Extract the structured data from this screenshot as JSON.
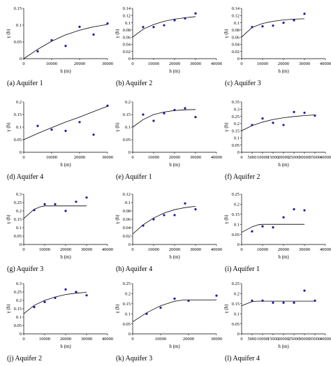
{
  "figure": {
    "panels": [
      {
        "caption": "(a) Aquifer 1",
        "ylabel": "γ (h)",
        "xlabel": "h (m)"
      },
      {
        "caption": "(b) Aquifer 2",
        "ylabel": "γ (h)",
        "xlabel": "h (m)"
      },
      {
        "caption": "(c) Aquifer 3",
        "ylabel": "γ (h)",
        "xlabel": "h (m)"
      },
      {
        "caption": "(d) Aquifer 4",
        "ylabel": "γ (h)",
        "xlabel": "h (m)"
      },
      {
        "caption": "(e) Aquifer 1",
        "ylabel": "γ (h)",
        "xlabel": "h (m)"
      },
      {
        "caption": "(f) Aquifer 2",
        "ylabel": "γ (h)",
        "xlabel": "h (m)"
      },
      {
        "caption": "(g) Aquifer 3",
        "ylabel": "γ (h)",
        "xlabel": "h (m)"
      },
      {
        "caption": "(h) Aquifer 4",
        "ylabel": "γ (h)",
        "xlabel": "h (m)"
      },
      {
        "caption": "(i) Aquifer 1",
        "ylabel": "γ (h)",
        "xlabel": "h (m)"
      },
      {
        "caption": "(j) Aquifer 2",
        "ylabel": "γ (h)",
        "xlabel": "h (m)"
      },
      {
        "caption": "(k) Aquifer 3",
        "ylabel": "γ (h)",
        "xlabel": "h (m)"
      },
      {
        "caption": "(l) Aquifer 4",
        "ylabel": "γ (h)",
        "xlabel": "h (m)"
      }
    ]
  },
  "chart_data": [
    {
      "type": "scatter",
      "title": "(a) Aquifer 1",
      "xlabel": "h (m)",
      "ylabel": "γ (h)",
      "xlim": [
        0,
        30000
      ],
      "ylim": [
        0,
        0.15
      ],
      "xticks": [
        0,
        10000,
        20000,
        30000
      ],
      "yticks": [
        0,
        0.05,
        0.1,
        0.15
      ],
      "points": {
        "x": [
          5000,
          10000,
          15000,
          20000,
          25000,
          30000
        ],
        "y": [
          0.022,
          0.055,
          0.038,
          0.095,
          0.072,
          0.105
        ]
      },
      "fit": {
        "x": [
          0,
          5000,
          10000,
          15000,
          20000,
          25000,
          30000
        ],
        "y": [
          0.0,
          0.028,
          0.052,
          0.071,
          0.085,
          0.095,
          0.102
        ]
      }
    },
    {
      "type": "scatter",
      "title": "(b) Aquifer 2",
      "xlabel": "h (m)",
      "ylabel": "γ (h)",
      "xlim": [
        0,
        40000
      ],
      "ylim": [
        0,
        0.14
      ],
      "xticks": [
        0,
        10000,
        20000,
        30000,
        40000
      ],
      "yticks": [
        0,
        0.02,
        0.04,
        0.06,
        0.08,
        0.1,
        0.12,
        0.14
      ],
      "points": {
        "x": [
          5000,
          10000,
          15000,
          20000,
          25000,
          30000
        ],
        "y": [
          0.088,
          0.088,
          0.093,
          0.107,
          0.112,
          0.126
        ]
      },
      "fit": {
        "x": [
          0,
          5000,
          10000,
          15000,
          20000,
          25000,
          30000
        ],
        "y": [
          0.06,
          0.082,
          0.095,
          0.104,
          0.11,
          0.114,
          0.117
        ]
      }
    },
    {
      "type": "scatter",
      "title": "(c) Aquifer 3",
      "xlabel": "h (m)",
      "ylabel": "γ (h)",
      "xlim": [
        0,
        40000
      ],
      "ylim": [
        0,
        0.14
      ],
      "xticks": [
        0,
        10000,
        20000,
        30000,
        40000
      ],
      "yticks": [
        0,
        0.02,
        0.04,
        0.06,
        0.08,
        0.1,
        0.12,
        0.14
      ],
      "points": {
        "x": [
          5000,
          10000,
          15000,
          20000,
          25000,
          30000
        ],
        "y": [
          0.088,
          0.09,
          0.092,
          0.1,
          0.107,
          0.125
        ]
      },
      "fit": {
        "x": [
          0,
          5000,
          10000,
          15000,
          20000,
          25000,
          30000
        ],
        "y": [
          0.06,
          0.087,
          0.098,
          0.104,
          0.108,
          0.11,
          0.111
        ]
      }
    },
    {
      "type": "scatter",
      "title": "(d) Aquifer 4",
      "xlabel": "h (m)",
      "ylabel": "γ (h)",
      "xlim": [
        0,
        30000
      ],
      "ylim": [
        0,
        0.2
      ],
      "xticks": [
        0,
        10000,
        20000,
        30000
      ],
      "yticks": [
        0,
        0.05,
        0.1,
        0.15,
        0.2
      ],
      "points": {
        "x": [
          5000,
          10000,
          15000,
          20000,
          25000,
          30000
        ],
        "y": [
          0.105,
          0.09,
          0.085,
          0.12,
          0.07,
          0.185
        ]
      },
      "fit": {
        "x": [
          0,
          5000,
          10000,
          15000,
          20000,
          25000,
          30000
        ],
        "y": [
          0.05,
          0.075,
          0.098,
          0.12,
          0.14,
          0.162,
          0.183
        ]
      }
    },
    {
      "type": "scatter",
      "title": "(e) Aquifer 1",
      "xlabel": "h (m)",
      "ylabel": "γ (h)",
      "xlim": [
        0,
        40000
      ],
      "ylim": [
        0,
        0.2
      ],
      "xticks": [
        0,
        10000,
        20000,
        30000,
        40000
      ],
      "yticks": [
        0,
        0.05,
        0.1,
        0.15,
        0.2
      ],
      "points": {
        "x": [
          5000,
          10000,
          15000,
          20000,
          25000,
          30000
        ],
        "y": [
          0.15,
          0.125,
          0.155,
          0.168,
          0.175,
          0.14
        ]
      },
      "fit": {
        "x": [
          0,
          5000,
          10000,
          15000,
          20000,
          25000,
          30000
        ],
        "y": [
          0.1,
          0.13,
          0.15,
          0.16,
          0.166,
          0.169,
          0.17
        ]
      }
    },
    {
      "type": "scatter",
      "title": "(f) Aquifer 2",
      "xlabel": "h (m)",
      "ylabel": "γ (h)",
      "xlim": [
        0,
        40000
      ],
      "ylim": [
        0,
        0.35
      ],
      "xticks": [
        0,
        5000,
        10000,
        15000,
        20000,
        25000,
        30000,
        35000,
        40000
      ],
      "yticks": [
        0,
        0.05,
        0.1,
        0.15,
        0.2,
        0.25,
        0.3,
        0.35
      ],
      "points": {
        "x": [
          5000,
          10000,
          15000,
          20000,
          25000,
          30000,
          35000
        ],
        "y": [
          0.19,
          0.235,
          0.205,
          0.19,
          0.28,
          0.275,
          0.255
        ]
      },
      "fit": {
        "x": [
          0,
          5000,
          10000,
          15000,
          20000,
          25000,
          30000,
          35000
        ],
        "y": [
          0.15,
          0.185,
          0.21,
          0.228,
          0.24,
          0.249,
          0.255,
          0.26
        ]
      }
    },
    {
      "type": "scatter",
      "title": "(g) Aquifer 3",
      "xlabel": "h (m)",
      "ylabel": "γ (h)",
      "xlim": [
        0,
        40000
      ],
      "ylim": [
        0,
        0.3
      ],
      "xticks": [
        0,
        10000,
        20000,
        30000,
        40000
      ],
      "yticks": [
        0,
        0.05,
        0.1,
        0.15,
        0.2,
        0.25,
        0.3
      ],
      "points": {
        "x": [
          5000,
          10000,
          15000,
          20000,
          25000,
          30000
        ],
        "y": [
          0.205,
          0.24,
          0.24,
          0.2,
          0.255,
          0.28
        ]
      },
      "fit": {
        "x": [
          0,
          5000,
          8000,
          10000,
          15000,
          20000,
          25000,
          30000
        ],
        "y": [
          0.155,
          0.21,
          0.225,
          0.23,
          0.23,
          0.23,
          0.23,
          0.23
        ]
      }
    },
    {
      "type": "scatter",
      "title": "(h) Aquifer 4",
      "xlabel": "h (m)",
      "ylabel": "γ (h)",
      "xlim": [
        0,
        40000
      ],
      "ylim": [
        0,
        0.12
      ],
      "xticks": [
        0,
        10000,
        20000,
        30000,
        40000
      ],
      "yticks": [
        0,
        0.02,
        0.04,
        0.06,
        0.08,
        0.1,
        0.12
      ],
      "points": {
        "x": [
          5000,
          10000,
          15000,
          20000,
          25000,
          30000
        ],
        "y": [
          0.045,
          0.06,
          0.07,
          0.07,
          0.098,
          0.084
        ]
      },
      "fit": {
        "x": [
          0,
          5000,
          10000,
          15000,
          20000,
          25000,
          30000
        ],
        "y": [
          0.025,
          0.047,
          0.063,
          0.075,
          0.083,
          0.088,
          0.091
        ]
      }
    },
    {
      "type": "scatter",
      "title": "(i) Aquifer 1",
      "xlabel": "h (m)",
      "ylabel": "γ (h)",
      "xlim": [
        0,
        40000
      ],
      "ylim": [
        0,
        0.25
      ],
      "xticks": [
        0,
        10000,
        20000,
        30000,
        40000
      ],
      "yticks": [
        0,
        0.05,
        0.1,
        0.15,
        0.2,
        0.25
      ],
      "points": {
        "x": [
          5000,
          10000,
          15000,
          20000,
          25000,
          30000
        ],
        "y": [
          0.065,
          0.09,
          0.085,
          0.135,
          0.175,
          0.17
        ]
      },
      "fit": {
        "x": [
          0,
          5000,
          8000,
          10000,
          15000,
          20000,
          25000,
          30000
        ],
        "y": [
          0.06,
          0.088,
          0.098,
          0.1,
          0.1,
          0.1,
          0.1,
          0.1
        ]
      }
    },
    {
      "type": "scatter",
      "title": "(j) Aquifer 2",
      "xlabel": "h (m)",
      "ylabel": "γ (h)",
      "xlim": [
        0,
        40000
      ],
      "ylim": [
        0,
        0.3
      ],
      "xticks": [
        0,
        10000,
        20000,
        30000,
        40000
      ],
      "yticks": [
        0,
        0.05,
        0.1,
        0.15,
        0.2,
        0.25,
        0.3
      ],
      "points": {
        "x": [
          5000,
          10000,
          15000,
          20000,
          25000,
          30000
        ],
        "y": [
          0.16,
          0.19,
          0.215,
          0.265,
          0.25,
          0.23
        ]
      },
      "fit": {
        "x": [
          0,
          5000,
          10000,
          15000,
          20000,
          25000,
          30000
        ],
        "y": [
          0.12,
          0.17,
          0.2,
          0.22,
          0.235,
          0.243,
          0.248
        ]
      }
    },
    {
      "type": "scatter",
      "title": "(k) Aquifer 3",
      "xlabel": "h (m)",
      "ylabel": "γ (h)",
      "xlim": [
        0,
        30000
      ],
      "ylim": [
        0,
        0.25
      ],
      "xticks": [
        0,
        10000,
        20000,
        30000
      ],
      "yticks": [
        0,
        0.05,
        0.1,
        0.15,
        0.2,
        0.25
      ],
      "points": {
        "x": [
          5000,
          10000,
          15000,
          20000,
          30000
        ],
        "y": [
          0.1,
          0.13,
          0.175,
          0.165,
          0.19
        ]
      },
      "fit": {
        "x": [
          0,
          5000,
          10000,
          15000,
          18000,
          20000,
          25000,
          30000
        ],
        "y": [
          0.06,
          0.105,
          0.14,
          0.162,
          0.168,
          0.168,
          0.168,
          0.168
        ]
      }
    },
    {
      "type": "scatter",
      "title": "(l) Aquifer 4",
      "xlabel": "h (m)",
      "ylabel": "γ (h)",
      "xlim": [
        0,
        40000
      ],
      "ylim": [
        0,
        0.25
      ],
      "xticks": [
        0,
        5000,
        10000,
        15000,
        20000,
        25000,
        30000,
        35000,
        40000
      ],
      "yticks": [
        0,
        0.05,
        0.1,
        0.15,
        0.2,
        0.25
      ],
      "points": {
        "x": [
          5000,
          10000,
          15000,
          20000,
          25000,
          30000,
          35000
        ],
        "y": [
          0.165,
          0.165,
          0.155,
          0.155,
          0.155,
          0.215,
          0.165
        ]
      },
      "fit": {
        "x": [
          0,
          5000,
          7000,
          10000,
          20000,
          30000,
          35000
        ],
        "y": [
          0.14,
          0.16,
          0.163,
          0.163,
          0.163,
          0.163,
          0.163
        ]
      }
    }
  ]
}
